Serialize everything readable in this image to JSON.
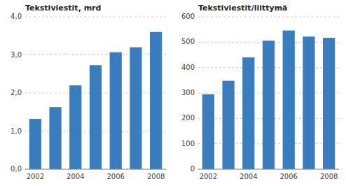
{
  "chart_data": [
    {
      "type": "bar",
      "title": "Tekstiviestit, mrd",
      "categories": [
        "2002",
        null,
        "2004",
        null,
        "2006",
        null,
        "2008"
      ],
      "values": [
        1.32,
        1.63,
        2.2,
        2.73,
        3.07,
        3.2,
        3.6
      ],
      "color": "#3A7DBF",
      "ylim": [
        0,
        4.0
      ],
      "yticks": [
        {
          "value": 0.0,
          "label": "0,0"
        },
        {
          "value": 1.0,
          "label": "1,0"
        },
        {
          "value": 2.0,
          "label": "2,0"
        },
        {
          "value": 3.0,
          "label": "3,0"
        },
        {
          "value": 4.0,
          "label": "4,0"
        }
      ],
      "grid": true
    },
    {
      "type": "bar",
      "title": "Tekstiviestit/liittymä",
      "categories": [
        "2002",
        null,
        "2004",
        null,
        "2006",
        null,
        "2008"
      ],
      "values": [
        295,
        348,
        440,
        506,
        546,
        522,
        517
      ],
      "color": "#3A7DBF",
      "ylim": [
        0,
        600
      ],
      "yticks": [
        0,
        100,
        200,
        300,
        400,
        500,
        600
      ],
      "grid": true
    }
  ]
}
